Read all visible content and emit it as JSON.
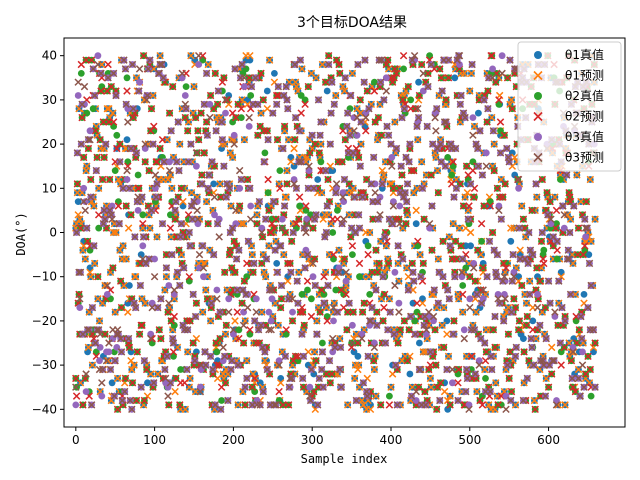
{
  "chart_data": {
    "type": "scatter",
    "title": "3个目标DOA结果",
    "xlabel": "Sample index",
    "ylabel": "DOA(°)",
    "xlim": [
      -15,
      697
    ],
    "ylim": [
      -44,
      44
    ],
    "x_ticks": [
      0,
      100,
      200,
      300,
      400,
      500,
      600
    ],
    "y_ticks": [
      -40,
      -30,
      -20,
      -10,
      0,
      10,
      20,
      30,
      40
    ],
    "grid": false,
    "legend_position": "top-right",
    "n_samples": 660,
    "value_range": [
      -40,
      40
    ],
    "series": [
      {
        "name": "θ1真值",
        "marker": "circle",
        "color": "#1f77b4",
        "seed": 11
      },
      {
        "name": "θ1预测",
        "marker": "x",
        "color": "#ff7f0e",
        "seed": 12,
        "follows": 0
      },
      {
        "name": "θ2真值",
        "marker": "circle",
        "color": "#2ca02c",
        "seed": 23
      },
      {
        "name": "θ2预测",
        "marker": "x",
        "color": "#d62728",
        "seed": 24,
        "follows": 2
      },
      {
        "name": "θ3真值",
        "marker": "circle",
        "color": "#9467bd",
        "seed": 35
      },
      {
        "name": "θ3预测",
        "marker": "x",
        "color": "#8c564b",
        "seed": 36,
        "follows": 4
      }
    ]
  }
}
